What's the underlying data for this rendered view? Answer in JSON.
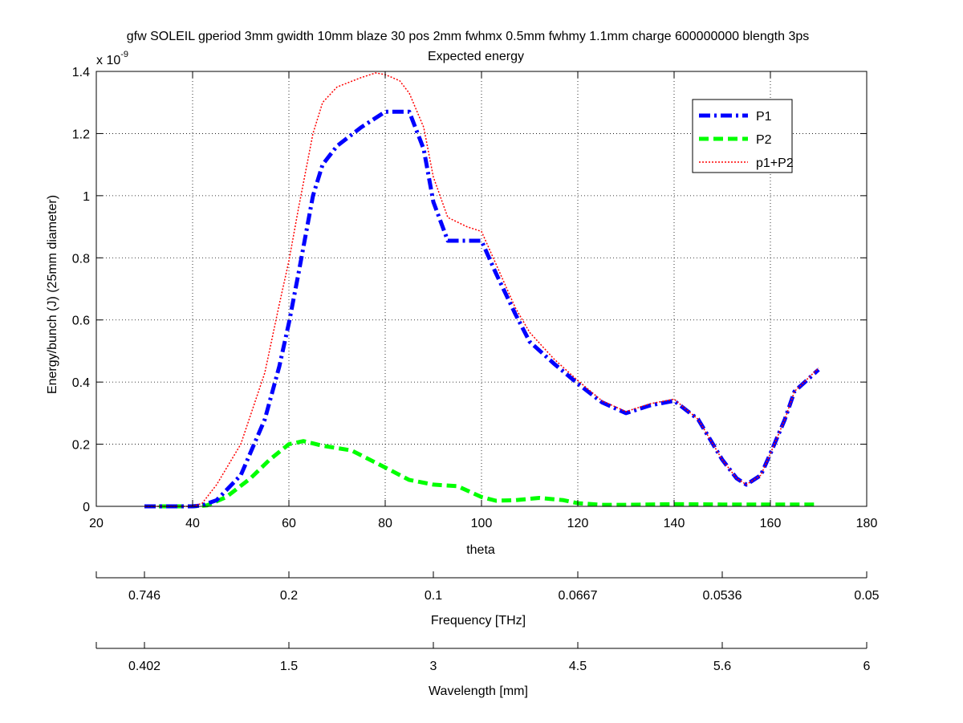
{
  "chart_data": {
    "type": "line",
    "title": "gfw SOLEIL gperiod 3mm gwidth 10mm blaze 30 pos 2mm fwhmx 0.5mm fwhmy 1.1mm charge 600000000 blength 3ps",
    "subtitle": "Expected energy",
    "xlabel": "theta",
    "ylabel": "Energy/bunch (J) (25mm diameter)",
    "y_exponent_base": "x 10",
    "y_exponent_power": "-9",
    "xlim": [
      20,
      180
    ],
    "ylim": [
      0,
      1.4
    ],
    "xticks": [
      20,
      40,
      60,
      80,
      100,
      120,
      140,
      160,
      180
    ],
    "yticks": [
      0,
      0.2,
      0.4,
      0.6,
      0.8,
      1,
      1.2,
      1.4
    ],
    "grid": true,
    "legend_position": "top-right",
    "series": [
      {
        "name": "P1",
        "color": "#0000ff",
        "style": "dashdot",
        "x": [
          30,
          40,
          42,
          45,
          50,
          55,
          58,
          60,
          62,
          65,
          67,
          70,
          75,
          80,
          85,
          88,
          90,
          93,
          97,
          100,
          103,
          107,
          110,
          115,
          120,
          125,
          130,
          135,
          140,
          145,
          150,
          153,
          155,
          158,
          160,
          163,
          165,
          170
        ],
        "values": [
          0.0,
          0.0,
          0.003,
          0.02,
          0.1,
          0.28,
          0.45,
          0.59,
          0.75,
          1.0,
          1.1,
          1.16,
          1.22,
          1.27,
          1.27,
          1.15,
          0.98,
          0.855,
          0.855,
          0.855,
          0.75,
          0.62,
          0.53,
          0.46,
          0.395,
          0.335,
          0.3,
          0.325,
          0.34,
          0.28,
          0.15,
          0.09,
          0.07,
          0.1,
          0.17,
          0.28,
          0.37,
          0.44
        ]
      },
      {
        "name": "P2",
        "color": "#00ff00",
        "style": "dashed",
        "x": [
          30,
          40,
          43,
          47,
          52,
          56,
          60,
          63,
          67,
          73,
          80,
          85,
          90,
          95,
          100,
          103,
          107,
          112,
          117,
          120,
          125,
          130,
          140,
          150,
          160,
          170
        ],
        "values": [
          0.0,
          0.0,
          0.003,
          0.03,
          0.09,
          0.15,
          0.2,
          0.21,
          0.195,
          0.18,
          0.125,
          0.085,
          0.07,
          0.065,
          0.03,
          0.018,
          0.02,
          0.027,
          0.02,
          0.01,
          0.005,
          0.005,
          0.007,
          0.006,
          0.006,
          0.006
        ]
      },
      {
        "name": "p1+P2",
        "color": "#ff0000",
        "style": "dotted",
        "x": [
          30,
          40,
          42,
          45,
          50,
          55,
          58,
          60,
          62,
          65,
          67,
          70,
          75,
          78,
          80,
          83,
          85,
          88,
          90,
          93,
          97,
          100,
          103,
          107,
          110,
          115,
          120,
          125,
          130,
          135,
          140,
          145,
          150,
          153,
          155,
          158,
          160,
          163,
          165,
          170
        ],
        "values": [
          0.0,
          0.0,
          0.01,
          0.07,
          0.2,
          0.43,
          0.65,
          0.79,
          0.96,
          1.2,
          1.3,
          1.35,
          1.38,
          1.395,
          1.39,
          1.37,
          1.33,
          1.22,
          1.06,
          0.93,
          0.9,
          0.885,
          0.78,
          0.64,
          0.56,
          0.475,
          0.405,
          0.34,
          0.305,
          0.33,
          0.345,
          0.28,
          0.15,
          0.09,
          0.07,
          0.1,
          0.17,
          0.28,
          0.37,
          0.445
        ]
      }
    ],
    "secondary_axes": [
      {
        "label": "Frequency [THz]",
        "tick_theta": [
          30,
          60,
          90,
          120,
          150,
          180
        ],
        "tick_labels": [
          "0.746",
          "0.2",
          "0.1",
          "0.0667",
          "0.0536",
          "0.05"
        ]
      },
      {
        "label": "Wavelength [mm]",
        "tick_theta": [
          30,
          60,
          90,
          120,
          150,
          180
        ],
        "tick_labels": [
          "0.402",
          "1.5",
          "3",
          "4.5",
          "5.6",
          "6"
        ]
      }
    ]
  }
}
